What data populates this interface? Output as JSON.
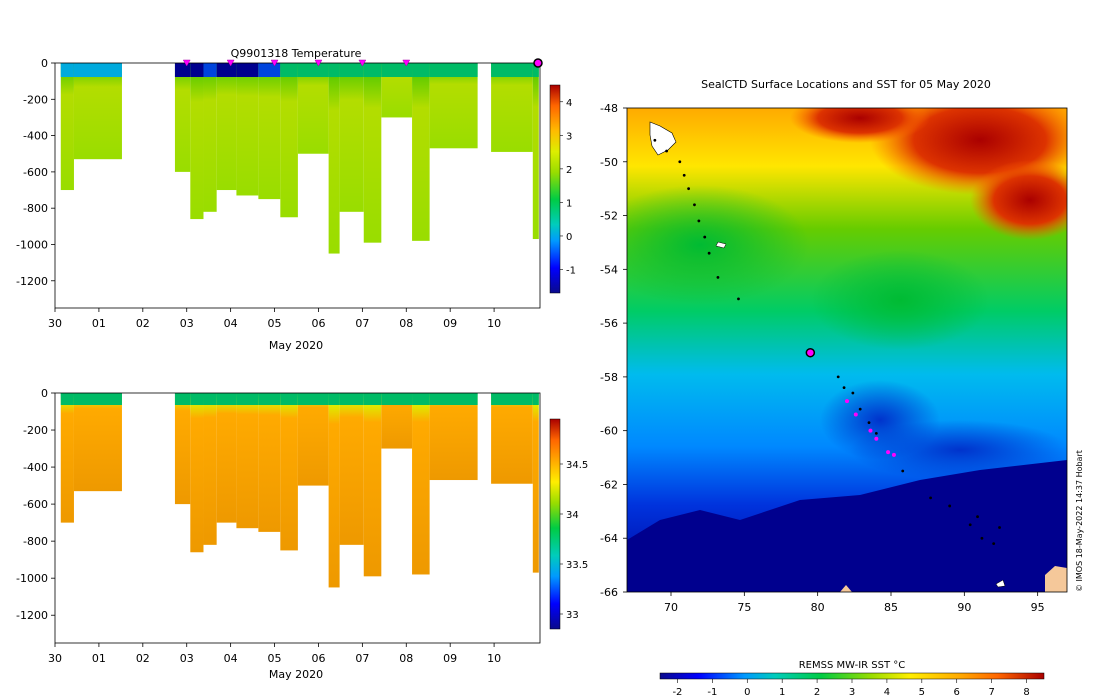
{
  "chart_data": [
    {
      "type": "heatmap",
      "title": "Q9901318  Temperature",
      "xlabel": "May 2020",
      "ylabel": "",
      "x_ticks": [
        "30",
        "01",
        "02",
        "03",
        "04",
        "05",
        "06",
        "07",
        "08",
        "09",
        "10"
      ],
      "x_range_days": [
        -1,
        10
      ],
      "y_ticks": [
        0,
        -200,
        -400,
        -600,
        -800,
        -1000,
        -1200
      ],
      "ylim": [
        -1350,
        0
      ],
      "colorbar": {
        "ticks": [
          -1,
          0,
          1,
          2,
          3,
          4
        ],
        "range": [
          -1.7,
          4.5
        ]
      },
      "profiles": [
        {
          "day": -0.8,
          "depth": 700,
          "surface": 0.2
        },
        {
          "day": -0.5,
          "depth": 530,
          "surface": 0.5
        },
        {
          "day": 0.8,
          "depth": 0,
          "surface": 0
        },
        {
          "day": 1.8,
          "depth": 600,
          "surface": -1.4
        },
        {
          "day": 2.15,
          "depth": 860,
          "surface": -1.3
        },
        {
          "day": 2.45,
          "depth": 820,
          "surface": -1.0
        },
        {
          "day": 2.75,
          "depth": 700,
          "surface": -1.2
        },
        {
          "day": 3.2,
          "depth": 730,
          "surface": -1.1
        },
        {
          "day": 3.7,
          "depth": 750,
          "surface": -0.9
        },
        {
          "day": 4.2,
          "depth": 850,
          "surface": 1.2
        },
        {
          "day": 4.6,
          "depth": 500,
          "surface": 1.5
        },
        {
          "day": 5.3,
          "depth": 1050,
          "surface": 1.4
        },
        {
          "day": 5.55,
          "depth": 820,
          "surface": 1.3
        },
        {
          "day": 6.1,
          "depth": 990,
          "surface": 1.1
        },
        {
          "day": 6.5,
          "depth": 300,
          "surface": 1.3
        },
        {
          "day": 7.2,
          "depth": 980,
          "surface": 1.8
        },
        {
          "day": 7.6,
          "depth": 470,
          "surface": 1.7
        },
        {
          "day": 9.0,
          "depth": 490,
          "surface": 1.4
        },
        {
          "day": 9.95,
          "depth": 970,
          "surface": 1.2
        }
      ],
      "markers_days": [
        2,
        3,
        4,
        5,
        6,
        7
      ],
      "current_day": 10
    },
    {
      "type": "heatmap",
      "title": "",
      "xlabel": "May 2020",
      "ylabel": "",
      "x_ticks": [
        "30",
        "01",
        "02",
        "03",
        "04",
        "05",
        "06",
        "07",
        "08",
        "09",
        "10"
      ],
      "y_ticks": [
        0,
        -200,
        -400,
        -600,
        -800,
        -1000,
        -1200
      ],
      "ylim": [
        -1350,
        0
      ],
      "colorbar": {
        "ticks": [
          33,
          33.5,
          34,
          34.5
        ],
        "range": [
          32.85,
          34.95
        ]
      }
    },
    {
      "type": "heatmap",
      "title": "SealCTD Surface Locations and SST for 05 May 2020",
      "x_ticks": [
        70,
        75,
        80,
        85,
        90,
        95
      ],
      "xlim": [
        67,
        97
      ],
      "y_ticks": [
        -48,
        -50,
        -52,
        -54,
        -56,
        -58,
        -60,
        -62,
        -64,
        -66
      ],
      "ylim": [
        -66,
        -48
      ],
      "colorbar_title": "REMSS MW-IR SST °C",
      "colorbar_ticks": [
        -2,
        -1,
        0,
        1,
        2,
        3,
        4,
        5,
        6,
        7,
        8
      ],
      "colorbar_range": [
        -2.5,
        8.5
      ],
      "current_location": {
        "lon": 79.5,
        "lat": -57.1
      },
      "magenta_locations": [
        {
          "lon": 82.0,
          "lat": -58.9
        },
        {
          "lon": 82.6,
          "lat": -59.4
        },
        {
          "lon": 83.6,
          "lat": -60.0
        },
        {
          "lon": 84.0,
          "lat": -60.3
        },
        {
          "lon": 84.8,
          "lat": -60.8
        },
        {
          "lon": 85.2,
          "lat": -60.9
        }
      ],
      "track_locations": [
        {
          "lon": 68.9,
          "lat": -49.2
        },
        {
          "lon": 69.7,
          "lat": -49.6
        },
        {
          "lon": 70.6,
          "lat": -50.0
        },
        {
          "lon": 70.9,
          "lat": -50.5
        },
        {
          "lon": 71.2,
          "lat": -51.0
        },
        {
          "lon": 71.6,
          "lat": -51.6
        },
        {
          "lon": 71.9,
          "lat": -52.2
        },
        {
          "lon": 72.3,
          "lat": -52.8
        },
        {
          "lon": 72.6,
          "lat": -53.4
        },
        {
          "lon": 73.2,
          "lat": -54.3
        },
        {
          "lon": 74.6,
          "lat": -55.1
        },
        {
          "lon": 81.4,
          "lat": -58.0
        },
        {
          "lon": 81.8,
          "lat": -58.4
        },
        {
          "lon": 82.4,
          "lat": -58.6
        },
        {
          "lon": 82.9,
          "lat": -59.2
        },
        {
          "lon": 83.5,
          "lat": -59.7
        },
        {
          "lon": 84.0,
          "lat": -60.1
        },
        {
          "lon": 85.8,
          "lat": -61.5
        },
        {
          "lon": 87.7,
          "lat": -62.5
        },
        {
          "lon": 89.0,
          "lat": -62.8
        },
        {
          "lon": 90.4,
          "lat": -63.5
        },
        {
          "lon": 91.2,
          "lat": -64.0
        },
        {
          "lon": 92.4,
          "lat": -63.6
        },
        {
          "lon": 90.9,
          "lat": -63.2
        },
        {
          "lon": 92.0,
          "lat": -64.2
        }
      ]
    }
  ],
  "credit": "© IMOS 18-May-2022 14:37 Hobart"
}
